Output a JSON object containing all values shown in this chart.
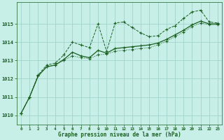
{
  "title": "Graphe pression niveau de la mer (hPa)",
  "background_color": "#c8eee8",
  "grid_color": "#a0d4cc",
  "line_color": "#1a6020",
  "xlim": [
    -0.5,
    23.5
  ],
  "ylim": [
    1009.5,
    1016.2
  ],
  "yticks": [
    1010,
    1011,
    1012,
    1013,
    1014,
    1015
  ],
  "xticks": [
    0,
    1,
    2,
    3,
    4,
    5,
    6,
    7,
    8,
    9,
    10,
    11,
    12,
    13,
    14,
    15,
    16,
    17,
    18,
    19,
    20,
    21,
    22,
    23
  ],
  "series1_x": [
    0,
    1,
    2,
    3,
    4,
    5,
    6,
    7,
    8,
    9,
    10,
    11,
    12,
    13,
    14,
    15,
    16,
    17,
    18,
    19,
    20,
    21,
    22,
    23
  ],
  "series1_y": [
    1010.1,
    1011.0,
    1012.2,
    1012.75,
    1012.85,
    1013.3,
    1014.0,
    1013.85,
    1013.7,
    1015.0,
    1013.5,
    1015.05,
    1015.1,
    1014.8,
    1014.5,
    1014.3,
    1014.35,
    1014.7,
    1014.9,
    1015.3,
    1015.65,
    1015.75,
    1015.1,
    1015.05
  ],
  "series2_x": [
    0,
    1,
    2,
    3,
    4,
    5,
    6,
    7,
    8,
    9,
    10,
    11,
    12,
    13,
    14,
    15,
    16,
    17,
    18,
    19,
    20,
    21,
    22,
    23
  ],
  "series2_y": [
    1010.1,
    1011.0,
    1012.15,
    1012.65,
    1012.75,
    1013.05,
    1013.45,
    1013.25,
    1013.15,
    1013.55,
    1013.4,
    1013.65,
    1013.7,
    1013.75,
    1013.8,
    1013.85,
    1013.95,
    1014.15,
    1014.4,
    1014.65,
    1014.95,
    1015.15,
    1015.0,
    1015.0
  ],
  "series3_x": [
    0,
    1,
    2,
    3,
    4,
    5,
    6,
    7,
    8,
    9,
    10,
    11,
    12,
    13,
    14,
    15,
    16,
    17,
    18,
    19,
    20,
    21,
    22,
    23
  ],
  "series3_y": [
    1010.1,
    1011.0,
    1012.15,
    1012.65,
    1012.75,
    1013.0,
    1013.25,
    1013.15,
    1013.1,
    1013.3,
    1013.35,
    1013.5,
    1013.55,
    1013.6,
    1013.65,
    1013.7,
    1013.85,
    1014.05,
    1014.3,
    1014.55,
    1014.85,
    1015.05,
    1014.95,
    1014.95
  ]
}
